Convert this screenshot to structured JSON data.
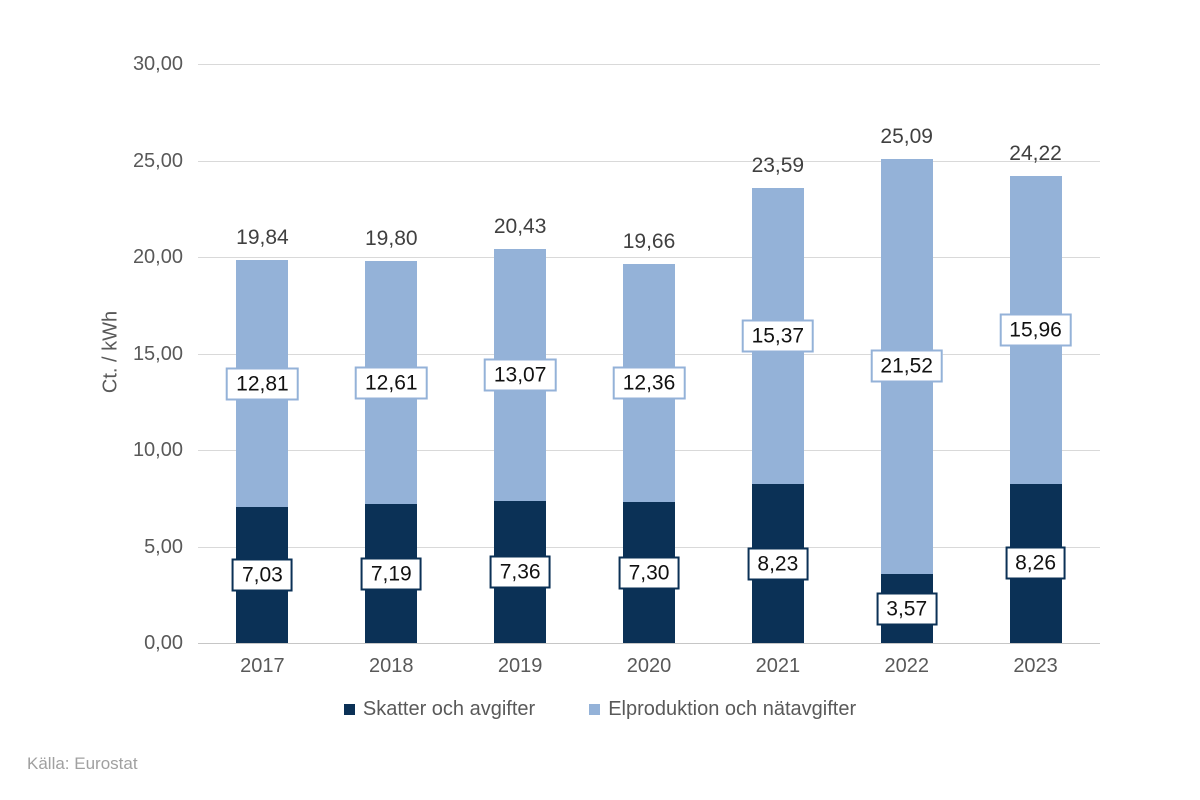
{
  "source_note": "Källa: Eurostat",
  "colors": {
    "background": "#ffffff",
    "gridline": "#d9d9d9",
    "axis_line": "#c6c6c6",
    "tick_text": "#595959",
    "total_text": "#404040",
    "box_label_text": "#111111",
    "source_text": "#a0a0a0",
    "series_dark": "#0b3156",
    "series_light": "#94b2d8"
  },
  "chart_data": {
    "type": "bar",
    "stacked": true,
    "title": "",
    "xlabel": "",
    "ylabel": "Ct. / kWh",
    "ylim": [
      0,
      30
    ],
    "grid": true,
    "legend_position": "bottom",
    "yticks": [
      {
        "value": 0,
        "label": "0,00"
      },
      {
        "value": 5,
        "label": "5,00"
      },
      {
        "value": 10,
        "label": "10,00"
      },
      {
        "value": 15,
        "label": "15,00"
      },
      {
        "value": 20,
        "label": "20,00"
      },
      {
        "value": 25,
        "label": "25,00"
      },
      {
        "value": 30,
        "label": "30,00"
      }
    ],
    "categories": [
      "2017",
      "2018",
      "2019",
      "2020",
      "2021",
      "2022",
      "2023"
    ],
    "series": [
      {
        "name": "Skatter och avgifter",
        "color": "#0b3156",
        "values": [
          7.03,
          7.19,
          7.36,
          7.3,
          8.23,
          3.57,
          8.26
        ],
        "labels": [
          "7,03",
          "7,19",
          "7,36",
          "7,30",
          "8,23",
          "3,57",
          "8,26"
        ]
      },
      {
        "name": "Elproduktion och nätavgifter",
        "color": "#94b2d8",
        "values": [
          12.81,
          12.61,
          13.07,
          12.36,
          15.37,
          21.52,
          15.96
        ],
        "labels": [
          "12,81",
          "12,61",
          "13,07",
          "12,36",
          "15,37",
          "21,52",
          "15,96"
        ]
      }
    ],
    "totals": {
      "values": [
        19.84,
        19.8,
        20.43,
        19.66,
        23.59,
        25.09,
        24.22
      ],
      "labels": [
        "19,84",
        "19,80",
        "20,43",
        "19,66",
        "23,59",
        "25,09",
        "24,22"
      ]
    }
  }
}
